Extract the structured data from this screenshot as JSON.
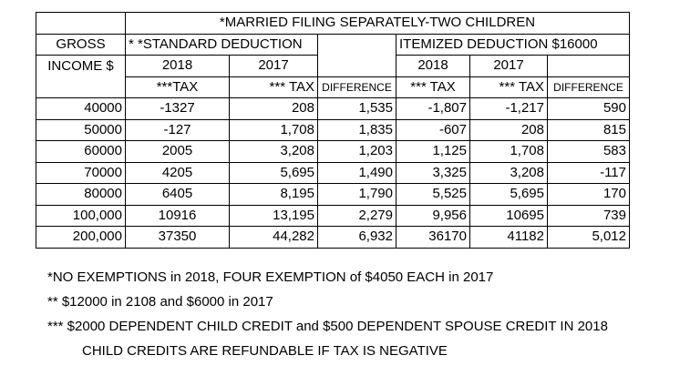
{
  "table": {
    "title": "*MARRIED FILING SEPARATELY-TWO CHILDREN",
    "gross_label": "GROSS",
    "income_label": "INCOME $",
    "standard_deduction": "* *STANDARD DEDUCTION",
    "itemized_deduction": "ITEMIZED DEDUCTION  $16000",
    "year_2018": "2018",
    "year_2017": "2017",
    "tax_2018_std": "***TAX",
    "tax_2017_std": "*** TAX",
    "difference_std": "DIFFERENCE",
    "tax_2018_item": "*** TAX",
    "tax_2017_item": "*** TAX",
    "difference_item": "DIFFERENCE",
    "rows": [
      [
        "40000",
        "-1327",
        "208",
        "1,535",
        "-1,807",
        "-1,217",
        "590"
      ],
      [
        "50000",
        "-127",
        "1,708",
        "1,835",
        "-607",
        "208",
        "815"
      ],
      [
        "60000",
        "2005",
        "3,208",
        "1,203",
        "1,125",
        "1,708",
        "583"
      ],
      [
        "70000",
        "4205",
        "5,695",
        "1,490",
        "3,325",
        "3,208",
        "-117"
      ],
      [
        "80000",
        "6405",
        "8,195",
        "1,790",
        "5,525",
        "5,695",
        "170"
      ],
      [
        "100,000",
        "10916",
        "13,195",
        "2,279",
        "9,956",
        "10695",
        "739"
      ],
      [
        "200,000",
        "37350",
        "44,282",
        "6,932",
        "36170",
        "41182",
        "5,012"
      ]
    ]
  },
  "notes": {
    "note1": "*NO EXEMPTIONS in 2018, FOUR EXEMPTION of $4050 EACH  in 2017",
    "note2": "** $12000 in 2108 and $6000 in 2017",
    "note3": "*** $2000 DEPENDENT CHILD CREDIT and $500 DEPENDENT SPOUSE CREDIT IN 2018",
    "note4": "CHILD CREDITS ARE REFUNDABLE IF TAX IS NEGATIVE"
  }
}
